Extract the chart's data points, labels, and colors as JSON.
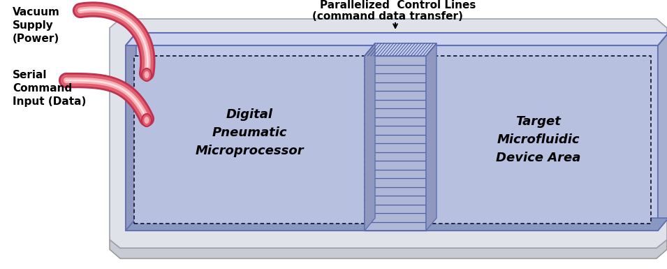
{
  "bg_color": "#ffffff",
  "board_face_color": "#e0e2ea",
  "board_edge_color": "#909090",
  "board_bottom_color": "#c8cad4",
  "chip_main_color": "#c0c8e8",
  "chip_top_color": "#ccd4f0",
  "chip_side_color": "#9098c0",
  "chip_edge_color": "#6070b0",
  "box_fill_color": "#c4cce8",
  "dashed_color": "#1a1a3a",
  "channel_fill": "#b8c0e0",
  "channel_wall_color": "#9098c8",
  "label_dpm": "Digital\nPneumatic\nMicroprocessor",
  "label_tma": "Target\nMicrofluidic\nDevice Area",
  "label_vacuum": "Vacuum\nSupply\n(Power)",
  "label_serial": "Serial\nCommand\nInput (Data)",
  "label_parallel_1": "Parallelized  Control Lines",
  "label_parallel_2": "(command data transfer)",
  "tube_outer": "#c03050",
  "tube_mid": "#e06070",
  "tube_inner": "#f8b0b8",
  "tube_highlight": "#fce0e0"
}
